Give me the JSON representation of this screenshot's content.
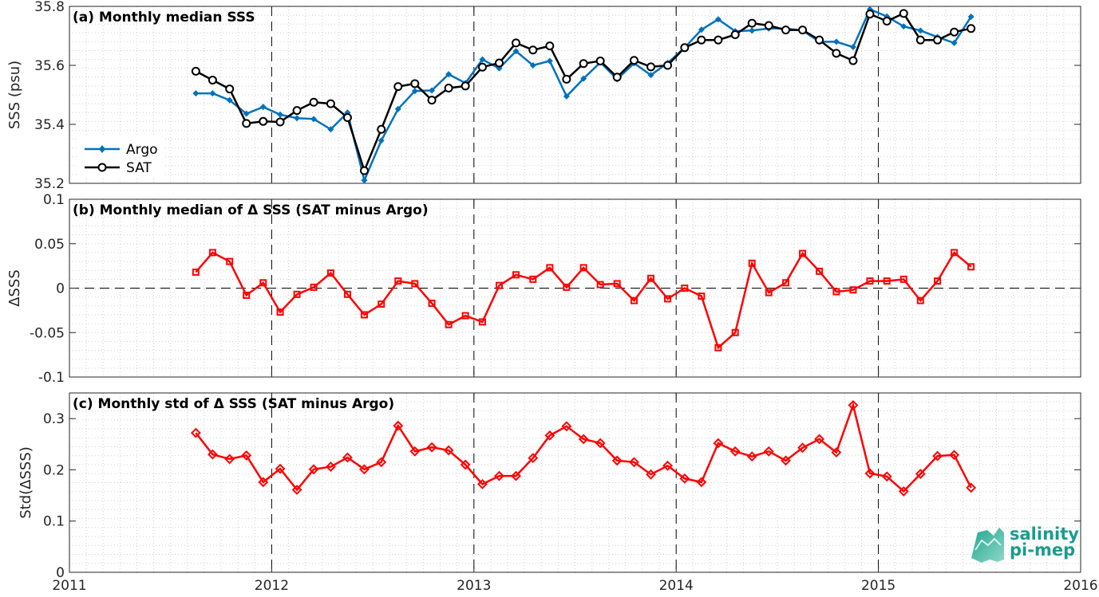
{
  "chart_data": [
    {
      "type": "line",
      "title": "(a) Monthly median SSS",
      "ylabel": "SSS (psu)",
      "xlim": [
        2011,
        2016
      ],
      "ylim": [
        35.2,
        35.8
      ],
      "yticks": [
        "35.2",
        "35.4",
        "35.6",
        "35.8"
      ],
      "grid": true,
      "legend": "bottom-left",
      "colors": {
        "Argo": "#0072bd",
        "SAT": "#000000"
      },
      "x_start_label": "2011-08",
      "x": [
        2011.625,
        2011.708,
        2011.792,
        2011.875,
        2011.958,
        2012.042,
        2012.125,
        2012.208,
        2012.292,
        2012.375,
        2012.458,
        2012.542,
        2012.625,
        2012.708,
        2012.792,
        2012.875,
        2012.958,
        2013.042,
        2013.125,
        2013.208,
        2013.292,
        2013.375,
        2013.458,
        2013.542,
        2013.625,
        2013.708,
        2013.792,
        2013.875,
        2013.958,
        2014.042,
        2014.125,
        2014.208,
        2014.292,
        2014.375,
        2014.458,
        2014.542,
        2014.625,
        2014.708,
        2014.792,
        2014.875,
        2014.958,
        2015.042,
        2015.125,
        2015.208,
        2015.292,
        2015.375,
        2015.458
      ],
      "series": [
        {
          "name": "Argo",
          "marker": "diamond-filled",
          "values": [
            35.505,
            35.505,
            35.482,
            35.436,
            35.459,
            35.433,
            35.421,
            35.418,
            35.383,
            35.44,
            35.21,
            35.345,
            35.452,
            35.513,
            35.515,
            35.57,
            35.54,
            35.62,
            35.59,
            35.648,
            35.6,
            35.615,
            35.495,
            35.555,
            35.61,
            35.553,
            35.607,
            35.567,
            35.608,
            35.66,
            35.721,
            35.756,
            35.716,
            35.718,
            35.725,
            35.725,
            35.718,
            35.68,
            35.68,
            35.662,
            35.79,
            35.766,
            35.732,
            35.718,
            35.696,
            35.676,
            35.765
          ]
        },
        {
          "name": "SAT",
          "marker": "circle-open",
          "values": [
            35.58,
            35.55,
            35.52,
            35.403,
            35.41,
            35.408,
            35.447,
            35.475,
            35.47,
            35.423,
            35.243,
            35.383,
            35.528,
            35.538,
            35.482,
            35.523,
            35.53,
            35.594,
            35.608,
            35.676,
            35.652,
            35.666,
            35.553,
            35.606,
            35.615,
            35.56,
            35.617,
            35.595,
            35.6,
            35.66,
            35.686,
            35.686,
            35.704,
            35.743,
            35.735,
            35.72,
            35.72,
            35.686,
            35.641,
            35.616,
            35.774,
            35.75,
            35.776,
            35.686,
            35.686,
            35.713,
            35.725
          ]
        }
      ]
    },
    {
      "type": "line",
      "title": "(b) Monthly median of Δ SSS (SAT minus Argo)",
      "ylabel": "ΔSSS",
      "xlim": [
        2011,
        2016
      ],
      "ylim": [
        -0.1,
        0.1
      ],
      "yticks": [
        "-0.1",
        "-0.05",
        "0",
        "0.05",
        "0.1"
      ],
      "grid": true,
      "zero_line": true,
      "colors": {
        "dSSS": "#ff0000"
      },
      "series": [
        {
          "name": "",
          "marker": "square-open",
          "values": [
            0.018,
            0.04,
            0.03,
            -0.008,
            0.006,
            -0.027,
            -0.007,
            0.001,
            0.017,
            -0.007,
            -0.03,
            -0.018,
            0.008,
            0.005,
            -0.017,
            -0.041,
            -0.031,
            -0.038,
            0.003,
            0.015,
            0.01,
            0.023,
            0.001,
            0.023,
            0.004,
            0.005,
            -0.014,
            0.011,
            -0.012,
            0.0,
            -0.009,
            -0.067,
            -0.05,
            0.028,
            -0.005,
            0.006,
            0.039,
            0.019,
            -0.004,
            -0.002,
            0.008,
            0.008,
            0.01,
            -0.014,
            0.008,
            0.04,
            0.024
          ]
        }
      ]
    },
    {
      "type": "line",
      "title": "(c) Monthly std of Δ SSS (SAT minus Argo)",
      "ylabel": "Std(ΔSSS)",
      "xlim": [
        2011,
        2016
      ],
      "ylim": [
        0,
        0.35
      ],
      "yticks": [
        "0",
        "0.1",
        "0.2",
        "0.3"
      ],
      "xticks": [
        "2011",
        "2012",
        "2013",
        "2014",
        "2015",
        "2016"
      ],
      "grid": true,
      "colors": {
        "std": "#ff0000"
      },
      "series": [
        {
          "name": "",
          "marker": "diamond-open",
          "values": [
            0.272,
            0.23,
            0.221,
            0.228,
            0.176,
            0.202,
            0.161,
            0.201,
            0.206,
            0.224,
            0.201,
            0.215,
            0.286,
            0.236,
            0.244,
            0.238,
            0.21,
            0.172,
            0.188,
            0.188,
            0.223,
            0.267,
            0.285,
            0.26,
            0.252,
            0.218,
            0.215,
            0.191,
            0.208,
            0.183,
            0.176,
            0.252,
            0.236,
            0.226,
            0.236,
            0.218,
            0.243,
            0.26,
            0.234,
            0.326,
            0.193,
            0.187,
            0.158,
            0.192,
            0.227,
            0.229,
            0.165
          ]
        }
      ]
    }
  ],
  "logo": {
    "line1": "salinity",
    "line2": "pi-mep"
  }
}
